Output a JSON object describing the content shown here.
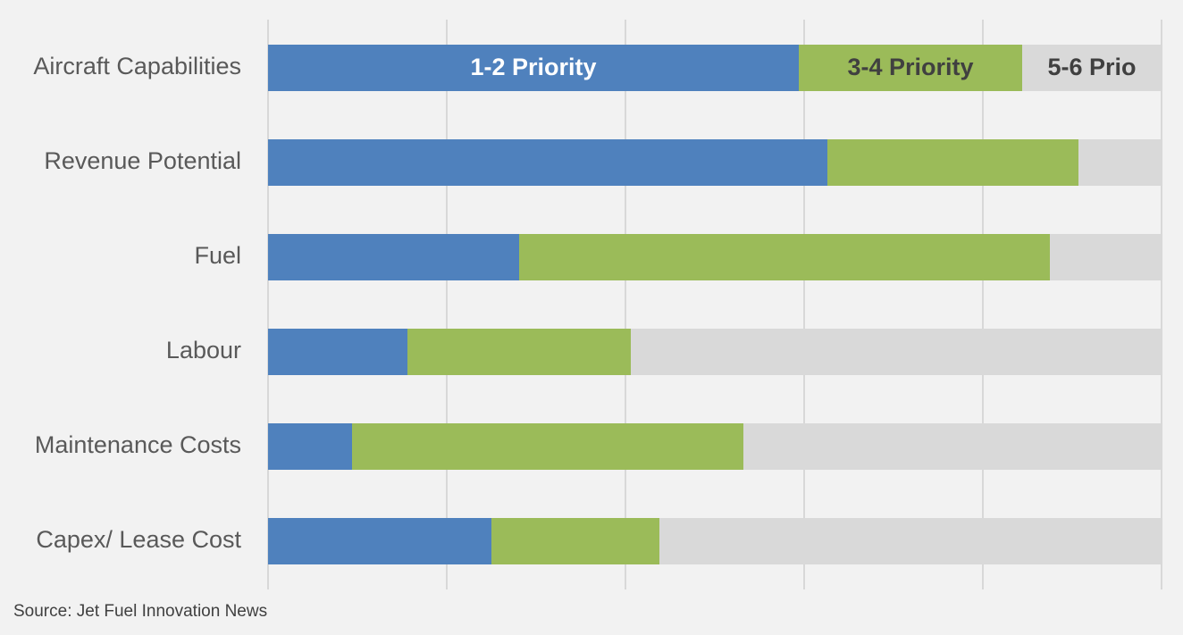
{
  "chart_data": {
    "type": "bar",
    "orientation": "horizontal",
    "stacked": "100%",
    "categories": [
      "Aircraft Capabilities",
      "Revenue Potential",
      "Fuel",
      "Labour",
      "Maintenance Costs",
      "Capex/ Lease Cost"
    ],
    "series": [
      {
        "name": "1-2 Priority",
        "color": "#4f81bd",
        "values": [
          59.4,
          62.6,
          28.1,
          15.6,
          9.4,
          25.0
        ]
      },
      {
        "name": "3-4 Priority",
        "color": "#9bbb59",
        "values": [
          25.0,
          28.1,
          59.4,
          25.0,
          43.8,
          18.8
        ]
      },
      {
        "name": "5-6 Prio",
        "color": "#d9d9d9",
        "values": [
          15.6,
          9.3,
          12.5,
          59.4,
          46.8,
          56.2
        ]
      }
    ],
    "segment_label_colors": [
      "#ffffff",
      "#404040",
      "#404040"
    ],
    "xlim": [
      0,
      100
    ],
    "grid": true,
    "legend": "inline labels on top bar",
    "source": "Source: Jet Fuel Innovation News"
  }
}
